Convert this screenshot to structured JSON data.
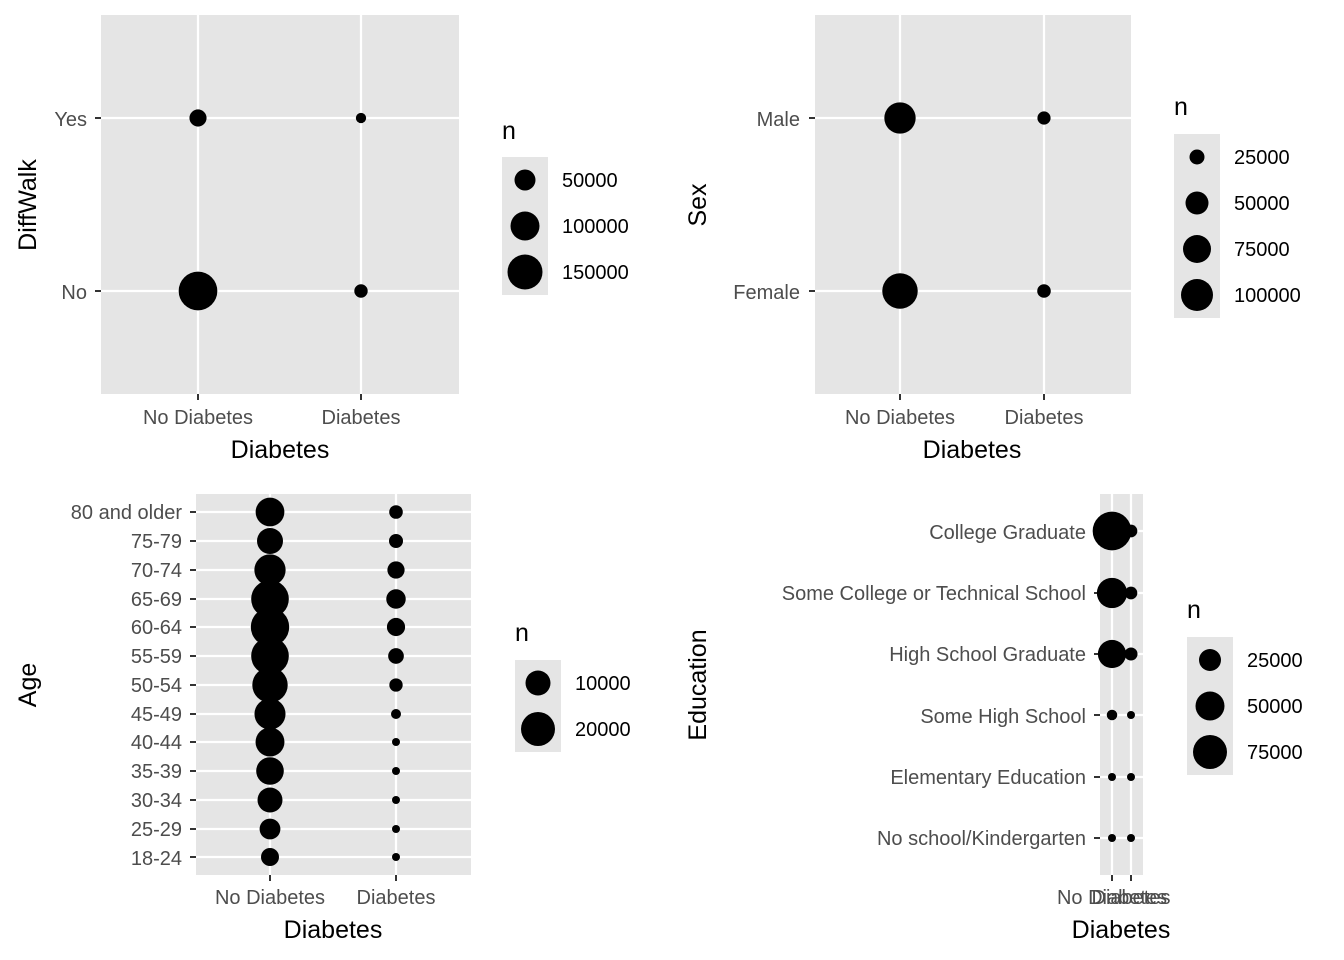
{
  "colors": {
    "panel_bg": "#e5e5e5",
    "grid": "#ffffff",
    "point": "#000000",
    "legend_key_bg": "#e5e5e5",
    "tick": "#333333",
    "tick_label": "#4d4d4d"
  },
  "chart_data": [
    {
      "type": "scatter",
      "encoding": "bubble: point size = count n",
      "xlabel": "Diabetes",
      "ylabel": "DiffWalk",
      "x_categories": [
        "No Diabetes",
        "Diabetes"
      ],
      "y_categories": [
        "No",
        "Yes"
      ],
      "points": [
        {
          "x": "No Diabetes",
          "y": "No",
          "n": 183000
        },
        {
          "x": "No Diabetes",
          "y": "Yes",
          "n": 36000
        },
        {
          "x": "Diabetes",
          "y": "No",
          "n": 22000
        },
        {
          "x": "Diabetes",
          "y": "Yes",
          "n": 13000
        }
      ],
      "legend": {
        "title": "n",
        "position": "right",
        "breaks": [
          50000,
          100000,
          150000
        ],
        "labels": [
          "50000",
          "100000",
          "150000"
        ]
      }
    },
    {
      "type": "scatter",
      "encoding": "bubble: point size = count n",
      "xlabel": "Diabetes",
      "ylabel": "Sex",
      "x_categories": [
        "No Diabetes",
        "Diabetes"
      ],
      "y_categories": [
        "Female",
        "Male"
      ],
      "points": [
        {
          "x": "No Diabetes",
          "y": "Female",
          "n": 123000
        },
        {
          "x": "No Diabetes",
          "y": "Male",
          "n": 96000
        },
        {
          "x": "Diabetes",
          "y": "Female",
          "n": 18000
        },
        {
          "x": "Diabetes",
          "y": "Male",
          "n": 17000
        }
      ],
      "legend": {
        "title": "n",
        "position": "right",
        "breaks": [
          25000,
          50000,
          75000,
          100000
        ],
        "labels": [
          "25000",
          "50000",
          "75000",
          "100000"
        ]
      }
    },
    {
      "type": "scatter",
      "encoding": "bubble: point size = count n",
      "xlabel": "Diabetes",
      "ylabel": "Age",
      "x_categories": [
        "No Diabetes",
        "Diabetes"
      ],
      "y_categories": [
        "18-24",
        "25-29",
        "30-34",
        "35-39",
        "40-44",
        "45-49",
        "50-54",
        "55-59",
        "60-64",
        "65-69",
        "70-74",
        "75-79",
        "80 and older"
      ],
      "points": [
        {
          "x": "No Diabetes",
          "y": "18-24",
          "n": 5600
        },
        {
          "x": "No Diabetes",
          "y": "25-29",
          "n": 7500
        },
        {
          "x": "No Diabetes",
          "y": "30-34",
          "n": 10800
        },
        {
          "x": "No Diabetes",
          "y": "35-39",
          "n": 13200
        },
        {
          "x": "No Diabetes",
          "y": "40-44",
          "n": 14500
        },
        {
          "x": "No Diabetes",
          "y": "45-49",
          "n": 16700
        },
        {
          "x": "No Diabetes",
          "y": "50-54",
          "n": 21700
        },
        {
          "x": "No Diabetes",
          "y": "55-59",
          "n": 24500
        },
        {
          "x": "No Diabetes",
          "y": "60-64",
          "n": 25500
        },
        {
          "x": "No Diabetes",
          "y": "65-69",
          "n": 24500
        },
        {
          "x": "No Diabetes",
          "y": "70-74",
          "n": 16900
        },
        {
          "x": "No Diabetes",
          "y": "75-79",
          "n": 11700
        },
        {
          "x": "No Diabetes",
          "y": "80 and older",
          "n": 14300
        },
        {
          "x": "Diabetes",
          "y": "18-24",
          "n": 80
        },
        {
          "x": "Diabetes",
          "y": "25-29",
          "n": 140
        },
        {
          "x": "Diabetes",
          "y": "30-34",
          "n": 310
        },
        {
          "x": "Diabetes",
          "y": "35-39",
          "n": 620
        },
        {
          "x": "Diabetes",
          "y": "40-44",
          "n": 1050
        },
        {
          "x": "Diabetes",
          "y": "45-49",
          "n": 1740
        },
        {
          "x": "Diabetes",
          "y": "50-54",
          "n": 3090
        },
        {
          "x": "Diabetes",
          "y": "55-59",
          "n": 4260
        },
        {
          "x": "Diabetes",
          "y": "60-64",
          "n": 5730
        },
        {
          "x": "Diabetes",
          "y": "65-69",
          "n": 6560
        },
        {
          "x": "Diabetes",
          "y": "70-74",
          "n": 5140
        },
        {
          "x": "Diabetes",
          "y": "75-79",
          "n": 3400
        },
        {
          "x": "Diabetes",
          "y": "80 and older",
          "n": 3210
        }
      ],
      "legend": {
        "title": "n",
        "position": "right",
        "breaks": [
          10000,
          20000
        ],
        "labels": [
          "10000",
          "20000"
        ]
      }
    },
    {
      "type": "scatter",
      "encoding": "bubble: point size = count n",
      "xlabel": "Diabetes",
      "ylabel": "Education",
      "x_categories": [
        "No Diabetes",
        "Diabetes"
      ],
      "y_categories": [
        "No school/Kindergarten",
        "Elementary Education",
        "Some High School",
        "High School Graduate",
        "Some College or Technical School",
        "College Graduate"
      ],
      "points": [
        {
          "x": "No Diabetes",
          "y": "No school/Kindergarten",
          "n": 130
        },
        {
          "x": "No Diabetes",
          "y": "Elementary Education",
          "n": 2860
        },
        {
          "x": "No Diabetes",
          "y": "Some High School",
          "n": 7180
        },
        {
          "x": "No Diabetes",
          "y": "High School Graduate",
          "n": 51680
        },
        {
          "x": "No Diabetes",
          "y": "Some College or Technical School",
          "n": 59560
        },
        {
          "x": "No Diabetes",
          "y": "College Graduate",
          "n": 96930
        },
        {
          "x": "Diabetes",
          "y": "No school/Kindergarten",
          "n": 50
        },
        {
          "x": "Diabetes",
          "y": "Elementary Education",
          "n": 1180
        },
        {
          "x": "Diabetes",
          "y": "Some High School",
          "n": 2300
        },
        {
          "x": "Diabetes",
          "y": "High School Graduate",
          "n": 11070
        },
        {
          "x": "Diabetes",
          "y": "Some College or Technical School",
          "n": 10350
        },
        {
          "x": "Diabetes",
          "y": "College Graduate",
          "n": 10400
        }
      ],
      "legend": {
        "title": "n",
        "position": "right",
        "breaks": [
          25000,
          50000,
          75000
        ],
        "labels": [
          "25000",
          "50000",
          "75000"
        ]
      }
    }
  ]
}
